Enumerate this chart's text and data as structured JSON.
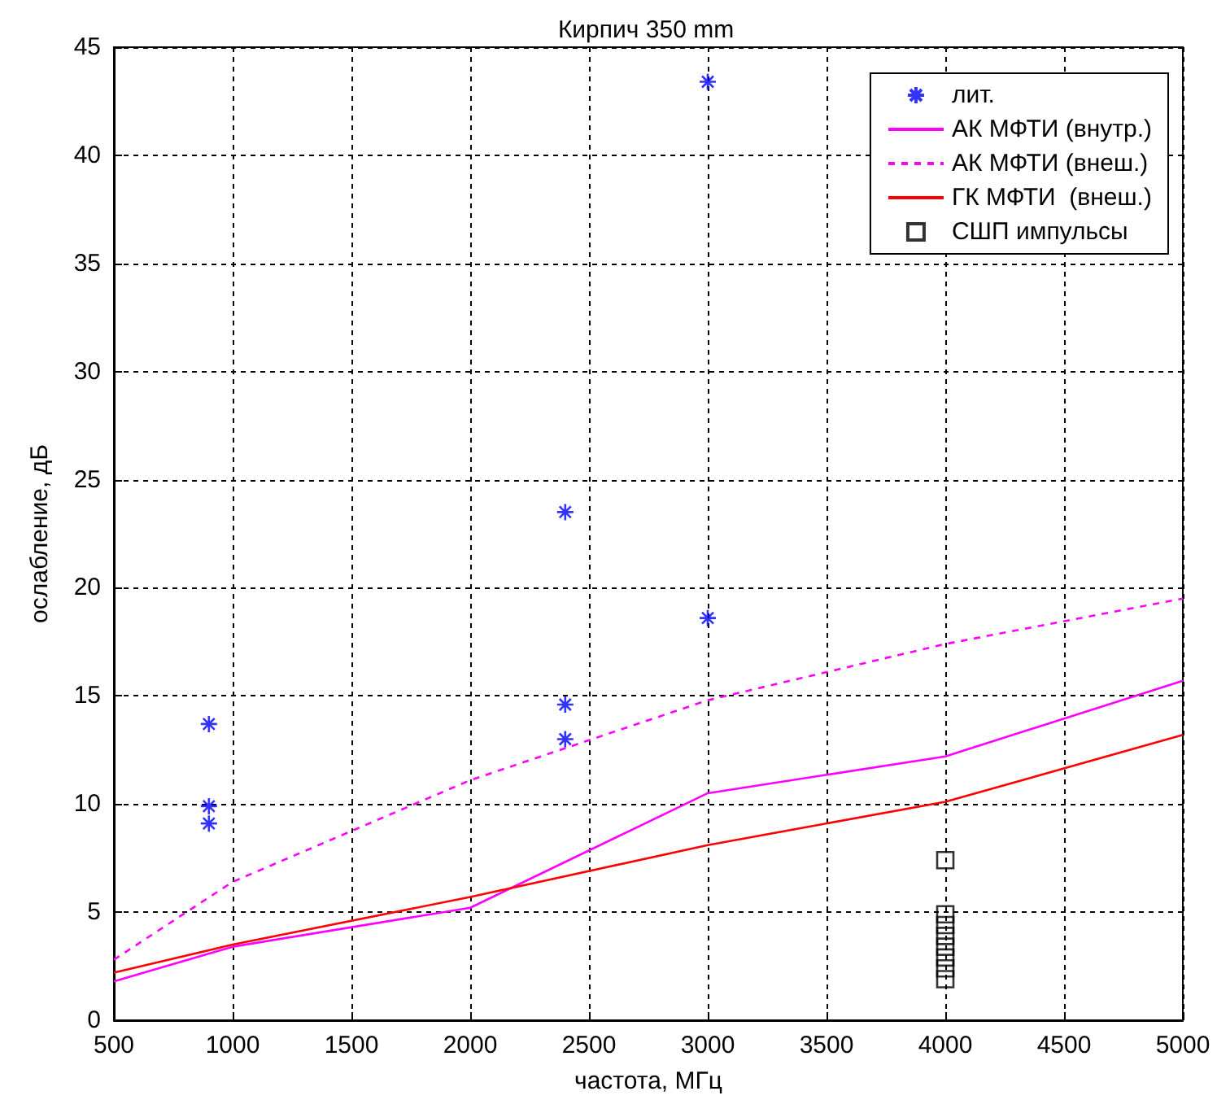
{
  "chart_data": {
    "type": "line",
    "title": "Кирпич 350 mm",
    "xlabel": "частота, МГц",
    "ylabel": "ослабление, дБ",
    "xlim": [
      500,
      5000
    ],
    "xticks": [
      500,
      1000,
      1500,
      2000,
      2500,
      3000,
      3500,
      4000,
      4500,
      5000
    ],
    "ylim": [
      0,
      45
    ],
    "yticks": [
      0,
      5,
      10,
      15,
      20,
      25,
      30,
      35,
      40,
      45
    ],
    "grid": true,
    "legend": "top right",
    "series": [
      {
        "name": "лит.",
        "type": "scatter",
        "marker": "cross",
        "color": "#0000ff",
        "x": [
          900,
          900,
          900,
          2400,
          2400,
          2400,
          3000,
          3000
        ],
        "values": [
          13.7,
          9.9,
          9.1,
          23.5,
          14.6,
          13.0,
          43.4,
          18.6
        ]
      },
      {
        "name": "АК МФТИ (внутр.)",
        "marker": "none",
        "line_style": "solid",
        "color": "#ff00ff",
        "x": [
          500,
          1000,
          2000,
          3000,
          4000,
          5000
        ],
        "values": [
          1.8,
          3.4,
          5.2,
          10.5,
          12.2,
          15.7
        ]
      },
      {
        "name": "АК МФТИ (внеш.)",
        "marker": "none",
        "line_style": "dashed",
        "color": "#ff00ff",
        "x": [
          500,
          1000,
          2000,
          3000,
          4000,
          5000
        ],
        "values": [
          2.8,
          6.4,
          11.1,
          14.8,
          17.4,
          19.5
        ]
      },
      {
        "name": "ГК МФТИ  (внеш.)",
        "marker": "none",
        "line_style": "solid",
        "color": "#ff0000",
        "x": [
          500,
          1000,
          2000,
          3000,
          4000,
          5000
        ],
        "values": [
          2.2,
          3.5,
          5.7,
          8.1,
          10.1,
          13.2
        ]
      },
      {
        "name": "СШП импульсы",
        "type": "scatter",
        "marker": "square",
        "color": "#000000",
        "x": [
          4000,
          4000,
          4000,
          4000,
          4000,
          4000,
          4000,
          4000
        ],
        "values": [
          7.4,
          4.9,
          4.4,
          3.9,
          3.4,
          2.9,
          2.4,
          1.9
        ]
      }
    ]
  }
}
